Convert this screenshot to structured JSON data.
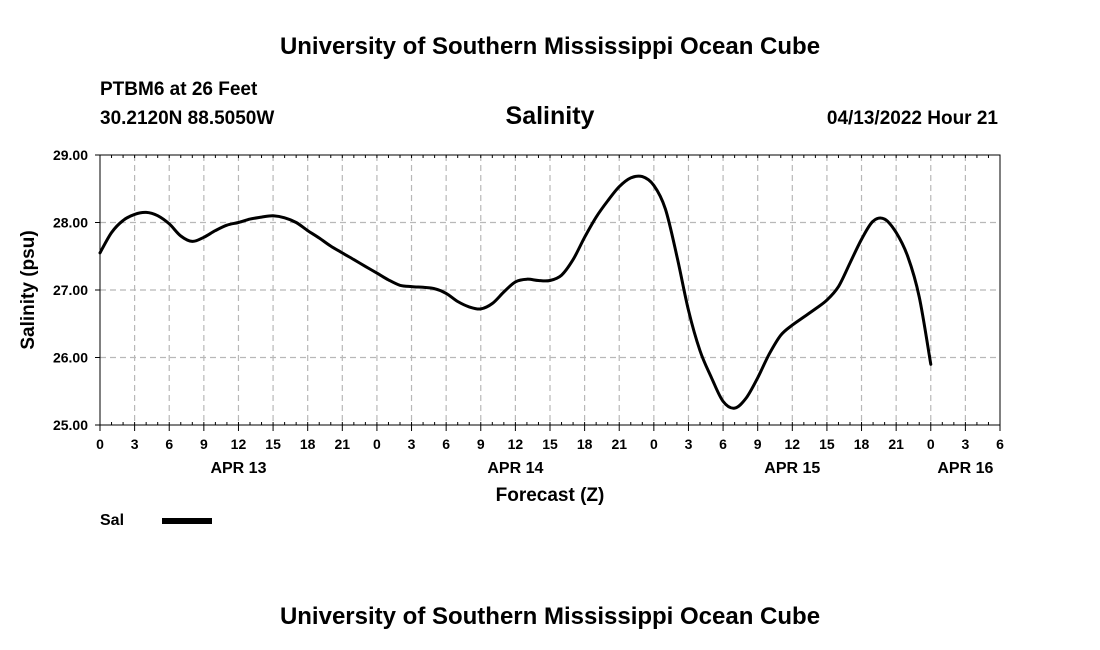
{
  "page": {
    "title": "University of Southern Mississippi Ocean Cube",
    "footer_title": "University of Southern Mississippi Ocean Cube",
    "station": "PTBM6 at 26 Feet",
    "coords": "30.2120N  88.5050W",
    "datetime": "04/13/2022 Hour 21"
  },
  "chart_data": {
    "type": "line",
    "title": "Salinity",
    "xlabel": "Forecast (Z)",
    "ylabel": "Salinity (psu)",
    "xlim": [
      0,
      78
    ],
    "ylim": [
      25.0,
      29.0
    ],
    "yticks": [
      "25.00",
      "26.00",
      "27.00",
      "28.00",
      "29.00"
    ],
    "ytick_values": [
      25,
      26,
      27,
      28,
      29
    ],
    "xtick_labels": [
      "0",
      "3",
      "6",
      "9",
      "12",
      "15",
      "18",
      "21",
      "0",
      "3",
      "6",
      "9",
      "12",
      "15",
      "18",
      "21",
      "0",
      "3",
      "6",
      "9",
      "12",
      "15",
      "18",
      "21",
      "0",
      "3",
      "6"
    ],
    "date_labels": [
      {
        "label": "APR 13",
        "hour": 12
      },
      {
        "label": "APR 14",
        "hour": 36
      },
      {
        "label": "APR 15",
        "hour": 60
      },
      {
        "label": "APR 16",
        "hour": 75
      }
    ],
    "grid": true,
    "legend": {
      "position": "bottom-left",
      "entries": [
        {
          "name": "Sal"
        }
      ]
    },
    "series": [
      {
        "name": "Sal",
        "x": [
          0,
          1,
          2,
          3,
          4,
          5,
          6,
          7,
          8,
          9,
          10,
          11,
          12,
          13,
          14,
          15,
          16,
          17,
          18,
          19,
          20,
          21,
          22,
          23,
          24,
          25,
          26,
          27,
          28,
          29,
          30,
          31,
          32,
          33,
          34,
          35,
          36,
          37,
          38,
          39,
          40,
          41,
          42,
          43,
          44,
          45,
          46,
          47,
          48,
          49,
          50,
          51,
          52,
          53,
          54,
          55,
          56,
          57,
          58,
          59,
          60,
          61,
          62,
          63,
          64,
          65,
          66,
          67,
          68,
          69,
          70,
          71,
          72,
          73,
          74,
          75,
          76,
          77,
          78
        ],
        "values": [
          27.55,
          27.85,
          28.03,
          28.12,
          28.15,
          28.1,
          27.98,
          27.8,
          27.72,
          27.78,
          27.88,
          27.96,
          28.0,
          28.05,
          28.08,
          28.1,
          28.07,
          28.0,
          27.88,
          27.77,
          27.65,
          27.55,
          27.45,
          27.35,
          27.25,
          27.15,
          27.07,
          27.05,
          27.04,
          27.02,
          26.95,
          26.83,
          26.75,
          26.72,
          26.8,
          26.97,
          27.12,
          27.16,
          27.14,
          27.14,
          27.22,
          27.45,
          27.78,
          28.08,
          28.32,
          28.53,
          28.66,
          28.68,
          28.55,
          28.2,
          27.5,
          26.7,
          26.1,
          25.7,
          25.35,
          25.25,
          25.4,
          25.7,
          26.05,
          26.33,
          26.48,
          26.6,
          26.72,
          26.85,
          27.05,
          27.4,
          27.75,
          28.02,
          28.05,
          27.85,
          27.5,
          26.9,
          25.9,
          null,
          null,
          null,
          null,
          null,
          null
        ]
      }
    ]
  }
}
